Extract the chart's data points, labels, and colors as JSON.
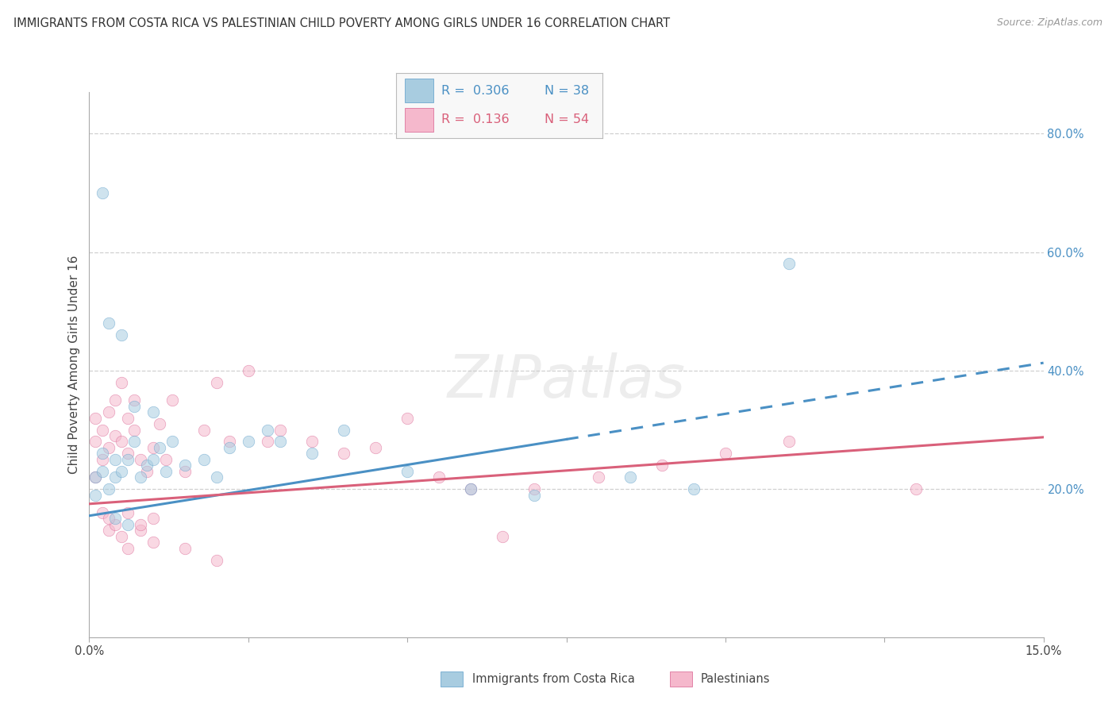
{
  "title": "IMMIGRANTS FROM COSTA RICA VS PALESTINIAN CHILD POVERTY AMONG GIRLS UNDER 16 CORRELATION CHART",
  "source": "Source: ZipAtlas.com",
  "ylabel": "Child Poverty Among Girls Under 16",
  "xlim": [
    0.0,
    0.15
  ],
  "ylim": [
    -0.05,
    0.87
  ],
  "xtick_vals": [
    0.0,
    0.025,
    0.05,
    0.075,
    0.1,
    0.125,
    0.15
  ],
  "xtick_labels": [
    "0.0%",
    "",
    "",
    "",
    "",
    "",
    "15.0%"
  ],
  "ytick_positions": [
    0.2,
    0.4,
    0.6,
    0.8
  ],
  "ytick_labels": [
    "20.0%",
    "40.0%",
    "60.0%",
    "80.0%"
  ],
  "color_blue_fill": "#a8cce0",
  "color_blue_edge": "#5b9dc9",
  "color_blue_line": "#4a90c4",
  "color_blue_text": "#4a90c4",
  "color_pink_fill": "#f5b8cc",
  "color_pink_edge": "#d96090",
  "color_pink_line": "#d9607a",
  "color_pink_text": "#d9607a",
  "color_grid": "#d0d0d0",
  "color_bg": "#ffffff",
  "color_title": "#333333",
  "color_source": "#999999",
  "watermark_text": "ZIPatlas",
  "scatter_size": 110,
  "scatter_alpha": 0.55,
  "trend_linewidth": 2.2,
  "blue_line_intercept": 0.155,
  "blue_line_slope": 1.72,
  "blue_line_solid_end": 0.075,
  "pink_line_intercept": 0.175,
  "pink_line_slope": 0.75,
  "blue_x": [
    0.001,
    0.001,
    0.002,
    0.002,
    0.003,
    0.004,
    0.004,
    0.005,
    0.006,
    0.007,
    0.008,
    0.009,
    0.01,
    0.011,
    0.012,
    0.015,
    0.018,
    0.02,
    0.022,
    0.025,
    0.028,
    0.03,
    0.035,
    0.04,
    0.05,
    0.06,
    0.07,
    0.005,
    0.003,
    0.002,
    0.007,
    0.01,
    0.013,
    0.004,
    0.006,
    0.085,
    0.095,
    0.11
  ],
  "blue_y": [
    0.19,
    0.22,
    0.23,
    0.26,
    0.2,
    0.22,
    0.25,
    0.23,
    0.25,
    0.28,
    0.22,
    0.24,
    0.25,
    0.27,
    0.23,
    0.24,
    0.25,
    0.22,
    0.27,
    0.28,
    0.3,
    0.28,
    0.26,
    0.3,
    0.23,
    0.2,
    0.19,
    0.46,
    0.48,
    0.7,
    0.34,
    0.33,
    0.28,
    0.15,
    0.14,
    0.22,
    0.2,
    0.58
  ],
  "pink_x": [
    0.001,
    0.001,
    0.001,
    0.002,
    0.002,
    0.003,
    0.003,
    0.004,
    0.004,
    0.005,
    0.005,
    0.006,
    0.006,
    0.007,
    0.007,
    0.008,
    0.009,
    0.01,
    0.011,
    0.012,
    0.013,
    0.015,
    0.018,
    0.02,
    0.022,
    0.025,
    0.028,
    0.03,
    0.035,
    0.04,
    0.045,
    0.05,
    0.055,
    0.06,
    0.065,
    0.07,
    0.08,
    0.09,
    0.1,
    0.11,
    0.003,
    0.004,
    0.005,
    0.006,
    0.008,
    0.01,
    0.002,
    0.003,
    0.006,
    0.008,
    0.01,
    0.015,
    0.02,
    0.13
  ],
  "pink_y": [
    0.22,
    0.28,
    0.32,
    0.25,
    0.3,
    0.27,
    0.33,
    0.29,
    0.35,
    0.28,
    0.38,
    0.26,
    0.32,
    0.3,
    0.35,
    0.25,
    0.23,
    0.27,
    0.31,
    0.25,
    0.35,
    0.23,
    0.3,
    0.38,
    0.28,
    0.4,
    0.28,
    0.3,
    0.28,
    0.26,
    0.27,
    0.32,
    0.22,
    0.2,
    0.12,
    0.2,
    0.22,
    0.24,
    0.26,
    0.28,
    0.13,
    0.14,
    0.12,
    0.1,
    0.13,
    0.11,
    0.16,
    0.15,
    0.16,
    0.14,
    0.15,
    0.1,
    0.08,
    0.2
  ]
}
